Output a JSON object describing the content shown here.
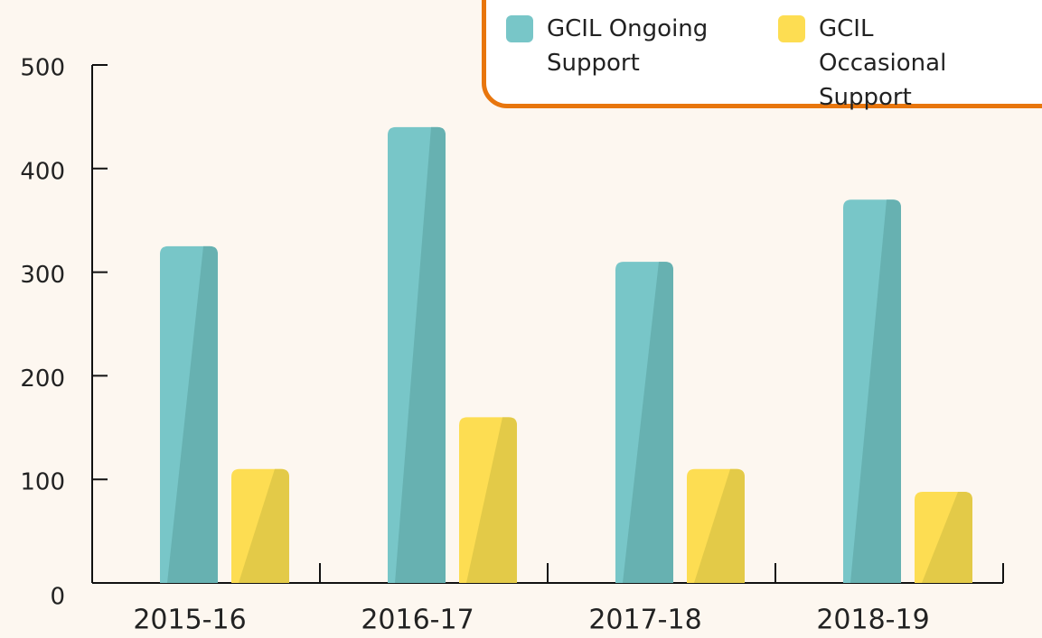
{
  "chart_data": {
    "type": "bar",
    "categories": [
      "2015-16",
      "2016-17",
      "2017-18",
      "2018-19"
    ],
    "series": [
      {
        "name": "GCIL Ongoing Support",
        "color": "#78c6c8",
        "shade": "#67b1b1",
        "values": [
          325,
          440,
          310,
          370
        ]
      },
      {
        "name": "GCIL Occasional Support",
        "color": "#fddd52",
        "shade": "#e3ca48",
        "values": [
          110,
          160,
          110,
          88
        ]
      }
    ],
    "ylim": [
      0,
      500
    ],
    "yticks": [
      0,
      100,
      200,
      300,
      400,
      500
    ],
    "grid": false,
    "legend": "upper right"
  }
}
